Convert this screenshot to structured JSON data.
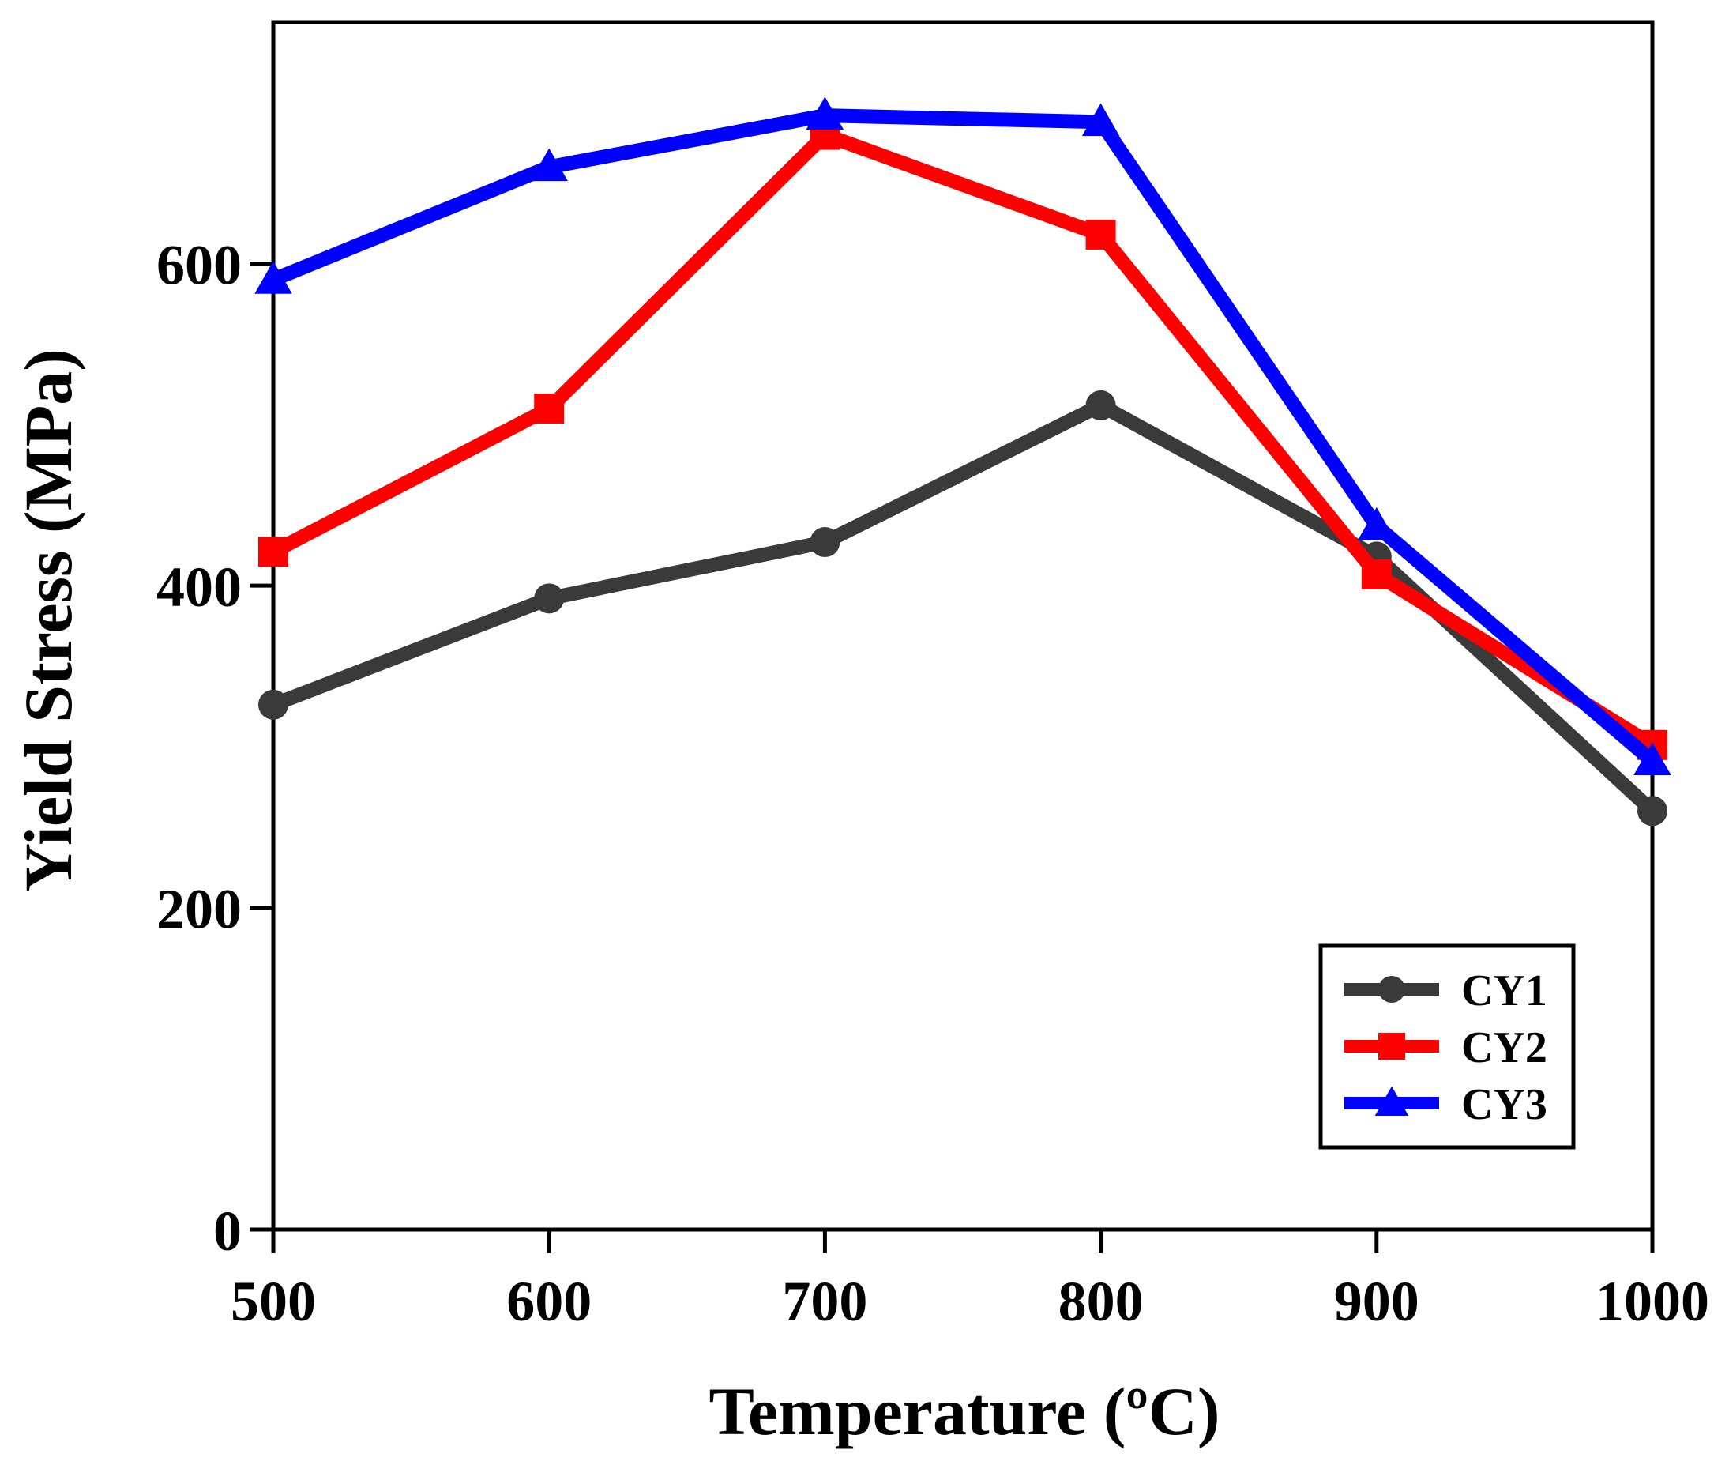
{
  "chart_data": {
    "type": "line",
    "title": "",
    "xlabel": "Temperature (ºC)",
    "ylabel": "Yield Stress (MPa)",
    "x": [
      500,
      600,
      700,
      800,
      900,
      1000
    ],
    "xticks": [
      500,
      600,
      700,
      800,
      900,
      1000
    ],
    "xtick_labels": [
      "500",
      "600",
      "700",
      "800",
      "900",
      "1000"
    ],
    "yticks": [
      0,
      200,
      400,
      600
    ],
    "ytick_labels": [
      "0",
      "200",
      "400",
      "600"
    ],
    "xlim": [
      500,
      1000
    ],
    "ylim": [
      0,
      750
    ],
    "grid": false,
    "legend_position": "bottom-right",
    "series": [
      {
        "name": "CY1",
        "color": "#3a3a3a",
        "marker": "circle",
        "values": [
          326,
          392,
          427,
          512,
          418,
          260
        ]
      },
      {
        "name": "CY2",
        "color": "#ff0000",
        "marker": "square",
        "values": [
          421,
          510,
          680,
          618,
          407,
          301
        ]
      },
      {
        "name": "CY3",
        "color": "#0000ff",
        "marker": "triangle",
        "values": [
          590,
          660,
          692,
          688,
          437,
          291
        ]
      }
    ]
  }
}
